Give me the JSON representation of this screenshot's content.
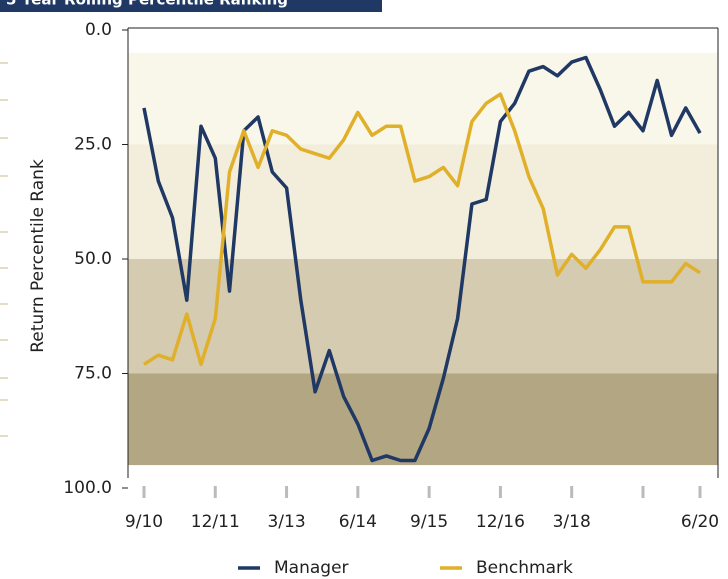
{
  "chart_data": {
    "type": "line",
    "title": "5 Year Rolling Percentile Ranking",
    "ylabel": "Return Percentile Rank",
    "categories": [
      "9/10",
      null,
      null,
      null,
      null,
      "12/11",
      null,
      null,
      null,
      null,
      "3/13",
      null,
      null,
      null,
      null,
      "6/14",
      null,
      null,
      null,
      null,
      "9/15",
      null,
      null,
      null,
      null,
      "12/16",
      null,
      null,
      null,
      null,
      "3/18",
      null,
      null,
      null,
      null,
      null,
      null,
      null,
      null,
      "6/20"
    ],
    "series": [
      {
        "name": "Manager",
        "color": "#1f3864",
        "values": [
          17,
          33,
          41,
          59,
          21,
          28,
          57,
          22,
          19,
          31,
          34.5,
          59,
          79,
          70,
          80,
          86,
          94,
          93,
          94,
          94,
          87,
          76,
          63,
          38,
          37,
          20,
          16,
          9,
          8,
          10,
          7,
          6,
          13,
          21,
          18,
          22,
          11,
          23,
          17,
          22.5
        ]
      },
      {
        "name": "Benchmark",
        "color": "#e0b02a",
        "values": [
          73,
          71,
          72,
          62,
          73,
          63,
          31,
          22,
          30,
          22,
          23,
          26,
          27,
          28,
          24,
          18,
          23,
          21,
          21,
          33,
          32,
          30,
          34,
          20,
          16,
          14,
          22,
          32,
          39,
          53.5,
          49,
          52,
          48,
          43,
          43,
          55,
          55,
          55,
          51,
          53
        ]
      }
    ],
    "ylim": [
      0,
      100
    ],
    "yticks": [
      {
        "value": 0,
        "label": "0.0"
      },
      {
        "value": 25,
        "label": "25.0"
      },
      {
        "value": 50,
        "label": "50.0"
      },
      {
        "value": 75,
        "label": "75.0"
      },
      {
        "value": 100,
        "label": "100.0"
      }
    ],
    "y_inverted": true,
    "bands": [
      {
        "from": 5,
        "to": 25,
        "color": "#f9f6ea"
      },
      {
        "from": 25,
        "to": 50,
        "color": "#f3eedc"
      },
      {
        "from": 50,
        "to": 75,
        "color": "#d4cbb0"
      },
      {
        "from": 75,
        "to": 95,
        "color": "#b3a683"
      }
    ],
    "legend": "bottom"
  }
}
